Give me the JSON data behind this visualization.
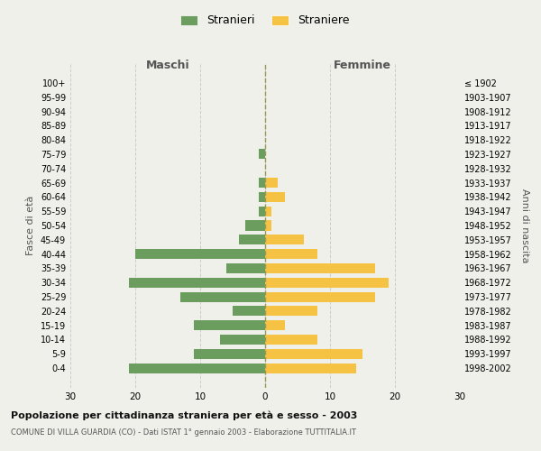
{
  "age_groups": [
    "100+",
    "95-99",
    "90-94",
    "85-89",
    "80-84",
    "75-79",
    "70-74",
    "65-69",
    "60-64",
    "55-59",
    "50-54",
    "45-49",
    "40-44",
    "35-39",
    "30-34",
    "25-29",
    "20-24",
    "15-19",
    "10-14",
    "5-9",
    "0-4"
  ],
  "birth_years": [
    "≤ 1902",
    "1903-1907",
    "1908-1912",
    "1913-1917",
    "1918-1922",
    "1923-1927",
    "1928-1932",
    "1933-1937",
    "1938-1942",
    "1943-1947",
    "1948-1952",
    "1953-1957",
    "1958-1962",
    "1963-1967",
    "1968-1972",
    "1973-1977",
    "1978-1982",
    "1983-1987",
    "1988-1992",
    "1993-1997",
    "1998-2002"
  ],
  "maschi": [
    0,
    0,
    0,
    0,
    0,
    1,
    0,
    1,
    1,
    1,
    3,
    4,
    20,
    6,
    21,
    13,
    5,
    11,
    7,
    11,
    21
  ],
  "femmine": [
    0,
    0,
    0,
    0,
    0,
    0,
    0,
    2,
    3,
    1,
    1,
    6,
    8,
    17,
    19,
    17,
    8,
    3,
    8,
    15,
    14
  ],
  "color_maschi": "#6b9e5e",
  "color_femmine": "#f5c243",
  "title": "Popolazione per cittadinanza straniera per età e sesso - 2003",
  "subtitle": "COMUNE DI VILLA GUARDIA (CO) - Dati ISTAT 1° gennaio 2003 - Elaborazione TUTTITALIA.IT",
  "xlabel_left": "Maschi",
  "xlabel_right": "Femmine",
  "ylabel_left": "Fasce di età",
  "ylabel_right": "Anni di nascita",
  "legend_stranieri": "Stranieri",
  "legend_straniere": "Straniere",
  "xlim": 30,
  "background_color": "#f0f0eb"
}
